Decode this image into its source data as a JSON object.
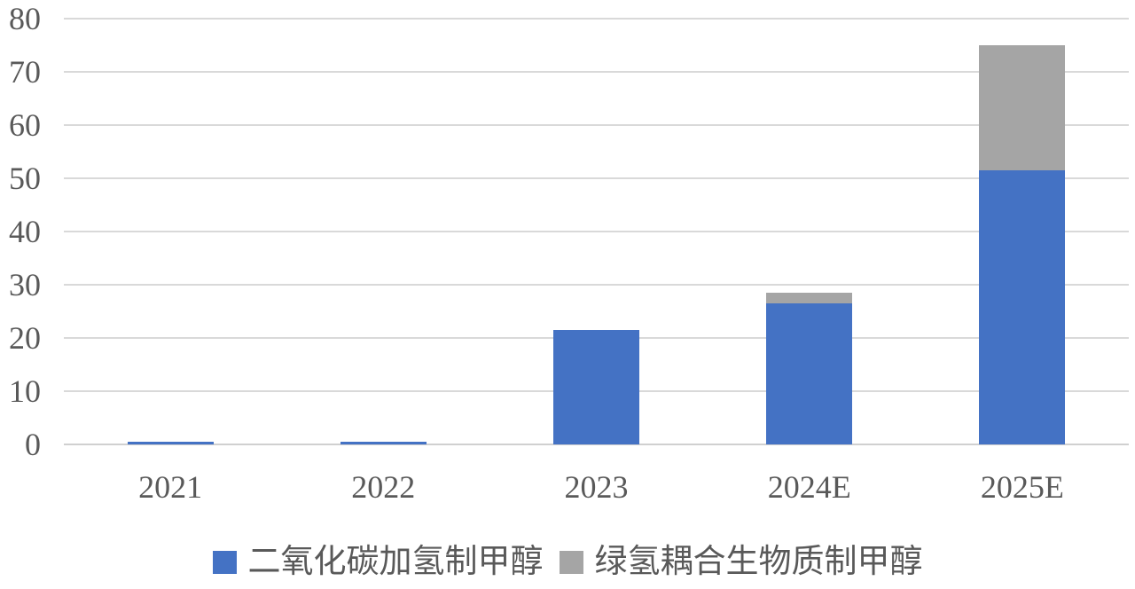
{
  "chart_data": {
    "type": "bar",
    "stacked": true,
    "title": "",
    "xlabel": "",
    "ylabel": "",
    "categories": [
      "2021",
      "2022",
      "2023",
      "2024E",
      "2025E"
    ],
    "series": [
      {
        "name": "二氧化碳加氢制甲醇",
        "color": "#4472C4",
        "values": [
          0.5,
          0.5,
          21.5,
          26.5,
          51.5
        ]
      },
      {
        "name": "绿氢耦合生物质制甲醇",
        "color": "#A5A5A5",
        "values": [
          0,
          0,
          0,
          2,
          23.5
        ]
      }
    ],
    "ylim": [
      0,
      80
    ],
    "yticks": [
      0,
      10,
      20,
      30,
      40,
      50,
      60,
      70,
      80
    ],
    "grid": "horizontal-only",
    "gridline_color": "#D9D9D9",
    "axis_text_color": "#595959",
    "legend_position": "bottom-center"
  }
}
